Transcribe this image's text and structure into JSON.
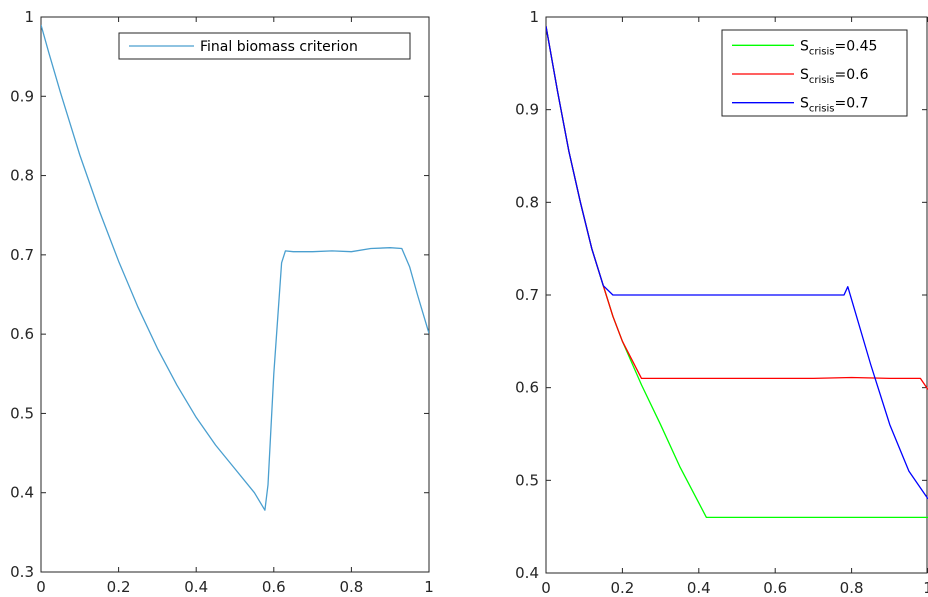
{
  "chart_data": [
    {
      "type": "line",
      "title": "",
      "xlabel": "",
      "ylabel": "",
      "xlim": [
        0,
        1
      ],
      "ylim": [
        0.3,
        1
      ],
      "xticks": [
        0,
        0.2,
        0.4,
        0.6,
        0.8,
        1
      ],
      "xtick_labels": [
        "0",
        "0.2",
        "0.4",
        "0.6",
        "0.8",
        "1"
      ],
      "yticks": [
        0.3,
        0.4,
        0.5,
        0.6,
        0.7,
        0.8,
        0.9,
        1
      ],
      "ytick_labels": [
        "0.3",
        "0.4",
        "0.5",
        "0.6",
        "0.7",
        "0.8",
        "0.9",
        "1"
      ],
      "grid": false,
      "legend_position": "top-right",
      "series": [
        {
          "name": "Final biomass criterion",
          "color": "#4a9fcf",
          "x": [
            0,
            0.02,
            0.05,
            0.1,
            0.15,
            0.2,
            0.25,
            0.3,
            0.35,
            0.4,
            0.45,
            0.5,
            0.55,
            0.577,
            0.585,
            0.6,
            0.62,
            0.63,
            0.65,
            0.7,
            0.75,
            0.8,
            0.85,
            0.9,
            0.93,
            0.95,
            0.97,
            1
          ],
          "y": [
            0.99,
            0.955,
            0.905,
            0.826,
            0.756,
            0.692,
            0.634,
            0.582,
            0.536,
            0.495,
            0.46,
            0.43,
            0.4,
            0.378,
            0.41,
            0.55,
            0.69,
            0.705,
            0.704,
            0.704,
            0.705,
            0.704,
            0.708,
            0.709,
            0.708,
            0.685,
            0.65,
            0.601
          ]
        }
      ]
    },
    {
      "type": "line",
      "title": "",
      "xlabel": "",
      "ylabel": "",
      "xlim": [
        0,
        1
      ],
      "ylim": [
        0.4,
        1
      ],
      "xticks": [
        0,
        0.2,
        0.4,
        0.6,
        0.8,
        1
      ],
      "xtick_labels": [
        "0",
        "0.2",
        "0.4",
        "0.6",
        "0.8",
        "1"
      ],
      "yticks": [
        0.4,
        0.5,
        0.6,
        0.7,
        0.8,
        0.9,
        1
      ],
      "ytick_labels": [
        "0.4",
        "0.5",
        "0.6",
        "0.7",
        "0.8",
        "0.9",
        "1"
      ],
      "grid": false,
      "legend_position": "top-right",
      "series": [
        {
          "name_main": "S",
          "name_sub": "crisis",
          "name_value": "=0.45",
          "color": "#00ff00",
          "x": [
            0,
            0.03,
            0.06,
            0.09,
            0.12,
            0.15,
            0.175,
            0.2,
            0.25,
            0.3,
            0.35,
            0.42,
            0.5,
            0.6,
            0.7,
            0.8,
            0.9,
            1
          ],
          "y": [
            0.99,
            0.92,
            0.855,
            0.8,
            0.75,
            0.71,
            0.677,
            0.65,
            0.603,
            0.56,
            0.515,
            0.46,
            0.46,
            0.46,
            0.46,
            0.46,
            0.46,
            0.46
          ]
        },
        {
          "name_main": "S",
          "name_sub": "crisis",
          "name_value": "=0.6",
          "color": "#ff0000",
          "x": [
            0,
            0.03,
            0.06,
            0.09,
            0.12,
            0.15,
            0.175,
            0.2,
            0.25,
            0.3,
            0.4,
            0.5,
            0.6,
            0.7,
            0.8,
            0.9,
            0.95,
            0.98,
            1
          ],
          "y": [
            0.99,
            0.92,
            0.855,
            0.8,
            0.75,
            0.71,
            0.677,
            0.65,
            0.61,
            0.61,
            0.61,
            0.61,
            0.61,
            0.61,
            0.611,
            0.61,
            0.61,
            0.61,
            0.598
          ]
        },
        {
          "name_main": "S",
          "name_sub": "crisis",
          "name_value": "=0.7",
          "color": "#0000ff",
          "x": [
            0,
            0.03,
            0.06,
            0.09,
            0.12,
            0.15,
            0.175,
            0.3,
            0.5,
            0.7,
            0.78,
            0.79,
            0.8,
            0.85,
            0.9,
            0.95,
            1
          ],
          "y": [
            0.99,
            0.92,
            0.855,
            0.8,
            0.75,
            0.71,
            0.7,
            0.7,
            0.7,
            0.7,
            0.7,
            0.709,
            0.695,
            0.625,
            0.56,
            0.51,
            0.48
          ]
        }
      ]
    }
  ]
}
